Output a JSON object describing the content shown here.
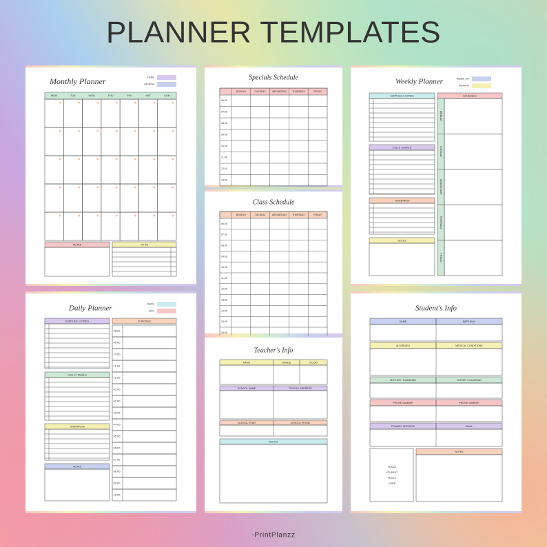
{
  "title": "PLANNER TEMPLATES",
  "brand": "-PrintPlanzz",
  "monthly": {
    "title": "Monthly Planner",
    "fields": [
      "YEAR",
      "MONTH"
    ],
    "days": [
      "MON",
      "TUE",
      "WED",
      "THU",
      "FRI",
      "SAT",
      "SUN"
    ],
    "notes": "NOTES",
    "todo": "TO DO"
  },
  "specials": {
    "title": "Specials Schedule",
    "days": [
      "MONDAY",
      "TUESDAY",
      "WEDNESDAY",
      "THURSDAY",
      "FRIDAY"
    ],
    "times": [
      "06:00",
      "07:00",
      "08:00",
      "09:00",
      "10:00",
      "11:00",
      "12:00",
      "13:00"
    ]
  },
  "class": {
    "title": "Class Schedule",
    "days": [
      "MONDAY",
      "TUESDAY",
      "WEDNESDAY",
      "THURSDAY",
      "FRIDAY"
    ],
    "times": [
      "06:00",
      "07:00",
      "08:00",
      "09:00",
      "10:00",
      "11:00",
      "12:00",
      "13:00",
      "14:00",
      "15:00",
      "16:00"
    ]
  },
  "weekly": {
    "title": "Weekly Planner",
    "fields": [
      "WEEK OF",
      "MONTH"
    ],
    "sections": [
      "SUPPLIES / COPIES",
      "CALLS / EMAILS",
      "TOMORROW",
      "NOTES"
    ],
    "schedule": "SCHEDULE",
    "days": [
      "MONDAY",
      "TUESDAY",
      "WEDNESDAY",
      "THURSDAY",
      "FRIDAY"
    ]
  },
  "daily": {
    "title": "Daily Planner",
    "fields": [
      "DATE",
      "DAY"
    ],
    "sections": [
      "SUPPLIES / COPIES",
      "CALLS / EMAILS",
      "TOMORROW",
      "NOTES"
    ],
    "schedule": "SCHEDULE",
    "times": [
      "08:00",
      "09:00",
      "10:00",
      "11:00",
      "12:00",
      "01:00",
      "02:00",
      "03:00",
      "04:00",
      "05:00",
      "06:00",
      "07:00",
      "08:00",
      "09:00",
      "10:00"
    ]
  },
  "teacher": {
    "title": "Teacher's Info",
    "fields": [
      "NAME",
      "GRADE",
      "ROOM",
      "SCHOOL NAME",
      "SCHOOL ADDRESS",
      "SCHOOL YEAR",
      "SCHOOL PHONE"
    ],
    "notes": "NOTES"
  },
  "student": {
    "title": "Student's Info",
    "fields": [
      "NAME",
      "BIRTHDAY",
      "ALLERGIES",
      "MEDICAL CONDITIONS",
      "MOTHER / GUARDIAN",
      "FATHER / GUARDIAN",
      "PHONE NUMBER",
      "PHONE NUMBER",
      "PRIMARY ADDRESS",
      "EMAIL"
    ],
    "photo": [
      "PLACE",
      "STUDENT",
      "PHOTO",
      "HERE"
    ],
    "notes": "NOTES"
  }
}
